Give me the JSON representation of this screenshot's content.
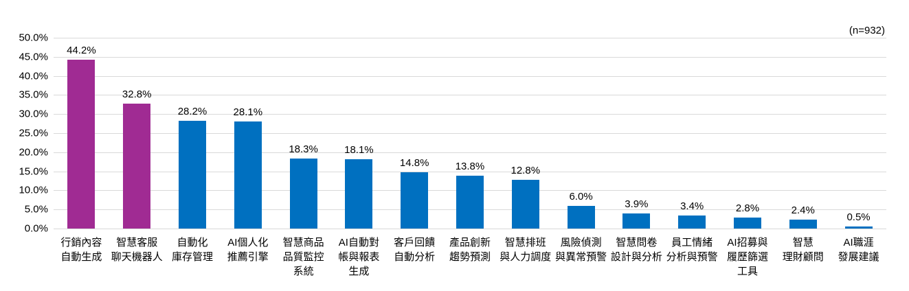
{
  "annotation": "(n=932)",
  "colors": {
    "highlight_bar": "#a02b93",
    "default_bar": "#0070c0",
    "gridline": "#d9d9d9",
    "text": "#000000",
    "background": "#ffffff"
  },
  "chart_data": {
    "type": "bar",
    "title": "",
    "xlabel": "",
    "ylabel": "",
    "ylim": [
      0,
      50
    ],
    "grid": true,
    "legend_position": "none",
    "yticks": [
      "50.0%",
      "45.0%",
      "40.0%",
      "35.0%",
      "30.0%",
      "25.0%",
      "20.0%",
      "15.0%",
      "10.0%",
      "5.0%",
      "0.0%"
    ],
    "categories": [
      [
        "行銷內容",
        "自動生成"
      ],
      [
        "智慧客服",
        "聊天機器人"
      ],
      [
        "自動化",
        "庫存管理"
      ],
      [
        "AI個人化",
        "推薦引擎"
      ],
      [
        "智慧商品",
        "品質監控",
        "系統"
      ],
      [
        "AI自動對",
        "帳與報表",
        "生成"
      ],
      [
        "客戶回饋",
        "自動分析"
      ],
      [
        "產品創新",
        "趨勢預測"
      ],
      [
        "智慧排班",
        "與人力調度"
      ],
      [
        "風險偵測",
        "與異常預警"
      ],
      [
        "智慧問卷",
        "設計與分析"
      ],
      [
        "員工情緒",
        "分析與預警"
      ],
      [
        "AI招募與",
        "履歷篩選",
        "工具"
      ],
      [
        "智慧",
        "理財顧問"
      ],
      [
        "AI職涯",
        "發展建議"
      ]
    ],
    "values": [
      44.2,
      32.8,
      28.2,
      28.1,
      18.3,
      18.1,
      14.8,
      13.8,
      12.8,
      6.0,
      3.9,
      3.4,
      2.8,
      2.4,
      0.5
    ],
    "value_labels": [
      "44.2%",
      "32.8%",
      "28.2%",
      "28.1%",
      "18.3%",
      "18.1%",
      "14.8%",
      "13.8%",
      "12.8%",
      "6.0%",
      "3.9%",
      "3.4%",
      "2.8%",
      "2.4%",
      "0.5%"
    ],
    "bar_colors": [
      "#a02b93",
      "#a02b93",
      "#0070c0",
      "#0070c0",
      "#0070c0",
      "#0070c0",
      "#0070c0",
      "#0070c0",
      "#0070c0",
      "#0070c0",
      "#0070c0",
      "#0070c0",
      "#0070c0",
      "#0070c0",
      "#0070c0"
    ]
  }
}
